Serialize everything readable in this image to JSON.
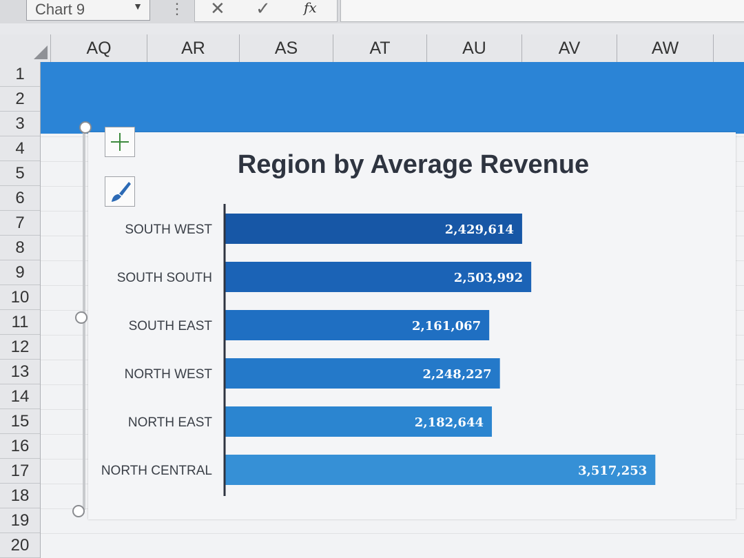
{
  "formula_bar": {
    "name_box": "Chart 9",
    "name_box_icon": "dropdown-arrow-icon",
    "dots_icon": "vertical-dots-icon",
    "cancel_icon": "close-icon",
    "enter_icon": "check-icon",
    "function_label": "fx"
  },
  "column_headers": [
    "AQ",
    "AR",
    "AS",
    "AT",
    "AU",
    "AV",
    "AW"
  ],
  "row_headers": [
    "1",
    "2",
    "3",
    "4",
    "5",
    "6",
    "7",
    "8",
    "9",
    "10",
    "11",
    "12",
    "13",
    "14",
    "15",
    "16",
    "17",
    "18",
    "19",
    "20"
  ],
  "chart_buttons": {
    "add_element_icon": "plus-icon",
    "style_icon": "paintbrush-icon"
  },
  "colors": {
    "header_band": "#2b84d6",
    "bar_colors": [
      "#1757a6",
      "#1b63b6",
      "#1f6fc2",
      "#2479c9",
      "#2b85d0",
      "#3690d6"
    ]
  },
  "chart_data": {
    "type": "bar",
    "orientation": "horizontal",
    "title": "Region by Average Revenue",
    "categories": [
      "SOUTH WEST",
      "SOUTH SOUTH",
      "SOUTH EAST",
      "NORTH WEST",
      "NORTH EAST",
      "NORTH CENTRAL"
    ],
    "values": [
      2429614,
      2503992,
      2161067,
      2248227,
      2182644,
      3517253
    ],
    "value_labels": [
      "2,429,614",
      "2,503,992",
      "2,161,067",
      "2,248,227",
      "2,182,644",
      "3,517,253"
    ],
    "xlim": [
      0,
      3600000
    ],
    "grid": false,
    "legend": "none"
  }
}
